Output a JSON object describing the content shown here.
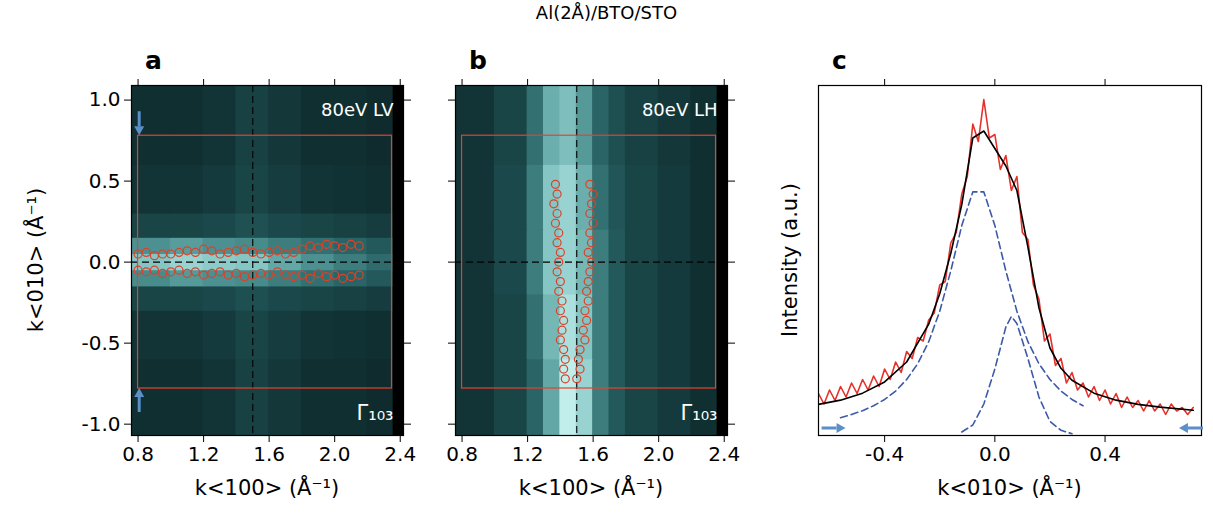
{
  "title": "Al(2Å)/BTO/STO",
  "chart_data": [
    {
      "panel": "a",
      "type": "heatmap",
      "xlabel": "k<100> (Å⁻¹)",
      "ylabel": "k<010> (Å⁻¹)",
      "annotations": [
        "80eV LV",
        "Γ₁₀₃"
      ],
      "xlim": [
        0.76,
        2.42
      ],
      "ylim": [
        -1.07,
        1.09
      ],
      "xticks": [
        0.8,
        1.2,
        1.6,
        {
          "value": 2,
          "label": "2.0"
        },
        2.4
      ],
      "yticks": [
        {
          "value": -1,
          "label": "-1.0"
        },
        -0.5,
        {
          "value": 0,
          "label": "0.0"
        },
        0.5,
        {
          "value": 1,
          "label": "1.0"
        }
      ],
      "map": {
        "x_edges": [
          0.76,
          1.0,
          1.2,
          1.4,
          1.6,
          1.8,
          2.0,
          2.2,
          2.36,
          2.42
        ],
        "y_edges": [
          -1.07,
          -0.6,
          -0.3,
          -0.15,
          -0.05,
          0.05,
          0.15,
          0.3,
          0.6,
          1.09
        ],
        "z": [
          [
            0.2,
            0.2,
            0.22,
            0.28,
            0.24,
            0.2,
            0.2,
            0.18,
            0.0
          ],
          [
            0.22,
            0.22,
            0.25,
            0.3,
            0.26,
            0.22,
            0.21,
            0.2,
            0.0
          ],
          [
            0.3,
            0.3,
            0.32,
            0.35,
            0.32,
            0.3,
            0.28,
            0.26,
            0.0
          ],
          [
            0.6,
            0.65,
            0.62,
            0.6,
            0.55,
            0.5,
            0.45,
            0.4,
            0.0
          ],
          [
            0.8,
            0.85,
            0.82,
            0.8,
            0.7,
            0.62,
            0.55,
            0.48,
            0.0
          ],
          [
            0.62,
            0.66,
            0.62,
            0.6,
            0.55,
            0.5,
            0.45,
            0.4,
            0.0
          ],
          [
            0.3,
            0.3,
            0.32,
            0.36,
            0.32,
            0.3,
            0.28,
            0.26,
            0.0
          ],
          [
            0.22,
            0.22,
            0.25,
            0.3,
            0.26,
            0.22,
            0.21,
            0.2,
            0.0
          ],
          [
            0.2,
            0.2,
            0.22,
            0.28,
            0.24,
            0.2,
            0.2,
            0.18,
            0.0
          ]
        ],
        "zlim": [
          0,
          1
        ]
      },
      "box": {
        "x": [
          0.8,
          2.35
        ],
        "y": [
          -0.78,
          0.78
        ],
        "color": "#e8402e"
      },
      "guides": {
        "x": 1.5,
        "y": 0,
        "line_style": "dashed",
        "color": "#000000"
      },
      "cut_markers": {
        "color": "#5b8fc7",
        "points": [
          {
            "x": 0.81,
            "y": 0.78,
            "direction": "down"
          },
          {
            "x": 0.81,
            "y": -0.78,
            "direction": "up"
          }
        ]
      },
      "series": [
        {
          "type": "scatter",
          "marker": "circle",
          "color": "#d9432b",
          "x": [
            0.8,
            0.85,
            0.9,
            0.95,
            1.0,
            1.05,
            1.1,
            1.15,
            1.2,
            1.25,
            1.3,
            1.35,
            1.4,
            1.45,
            1.5,
            1.55,
            1.6,
            1.65,
            1.7,
            1.75,
            1.8,
            1.85,
            1.9,
            1.95,
            2.0,
            2.05,
            2.1,
            2.15
          ],
          "values": [
            0.05,
            0.06,
            0.04,
            0.05,
            0.05,
            0.06,
            0.07,
            0.06,
            0.08,
            0.07,
            0.05,
            0.06,
            0.07,
            0.08,
            0.06,
            0.05,
            0.06,
            0.07,
            0.05,
            0.06,
            0.08,
            0.1,
            0.09,
            0.11,
            0.1,
            0.09,
            0.11,
            0.1
          ]
        },
        {
          "type": "scatter",
          "marker": "circle",
          "color": "#d9432b",
          "x": [
            0.8,
            0.85,
            0.9,
            0.95,
            1.0,
            1.05,
            1.1,
            1.15,
            1.2,
            1.25,
            1.3,
            1.35,
            1.4,
            1.45,
            1.5,
            1.55,
            1.6,
            1.65,
            1.7,
            1.75,
            1.8,
            1.85,
            1.9,
            1.95,
            2.0,
            2.05,
            2.1,
            2.15
          ],
          "values": [
            -0.05,
            -0.06,
            -0.05,
            -0.07,
            -0.06,
            -0.05,
            -0.07,
            -0.06,
            -0.08,
            -0.07,
            -0.06,
            -0.08,
            -0.07,
            -0.09,
            -0.08,
            -0.07,
            -0.08,
            -0.06,
            -0.08,
            -0.09,
            -0.08,
            -0.1,
            -0.07,
            -0.09,
            -0.08,
            -0.1,
            -0.09,
            -0.08
          ]
        }
      ]
    },
    {
      "panel": "b",
      "type": "heatmap",
      "xlabel": "k<100> (Å⁻¹)",
      "annotations": [
        "80eV LH",
        "Γ₁₀₃"
      ],
      "tick_labels": "x",
      "xlim": [
        0.76,
        2.42
      ],
      "ylim": [
        -1.07,
        1.09
      ],
      "xticks": [
        0.8,
        1.2,
        1.6,
        {
          "value": 2,
          "label": "2.0"
        },
        2.4
      ],
      "yticks": [
        -1,
        -0.5,
        0,
        0.5,
        1
      ],
      "map": {
        "x_edges": [
          0.76,
          1.0,
          1.2,
          1.3,
          1.4,
          1.5,
          1.6,
          1.7,
          1.8,
          2.0,
          2.2,
          2.36,
          2.42
        ],
        "y_edges": [
          -1.07,
          -0.6,
          -0.2,
          0.2,
          0.6,
          1.09
        ],
        "z": [
          [
            0.22,
            0.3,
            0.45,
            0.7,
            0.95,
            0.85,
            0.55,
            0.4,
            0.3,
            0.25,
            0.2,
            0.0
          ],
          [
            0.22,
            0.3,
            0.5,
            0.75,
            0.9,
            0.8,
            0.55,
            0.4,
            0.3,
            0.25,
            0.2,
            0.0
          ],
          [
            0.22,
            0.32,
            0.55,
            0.8,
            0.85,
            0.75,
            0.55,
            0.4,
            0.3,
            0.25,
            0.2,
            0.0
          ],
          [
            0.22,
            0.32,
            0.55,
            0.8,
            0.85,
            0.72,
            0.5,
            0.38,
            0.3,
            0.25,
            0.2,
            0.0
          ],
          [
            0.22,
            0.3,
            0.5,
            0.72,
            0.78,
            0.65,
            0.45,
            0.35,
            0.28,
            0.24,
            0.2,
            0.0
          ]
        ],
        "zlim": [
          0,
          1
        ]
      },
      "box": {
        "x": [
          0.8,
          2.35
        ],
        "y": [
          -0.78,
          0.78
        ],
        "color": "#e8402e"
      },
      "guides": {
        "x": 1.5,
        "y": 0,
        "line_style": "dashed",
        "color": "#000000"
      },
      "series": [
        {
          "type": "scatter",
          "marker": "circle",
          "color": "#d9432b",
          "x": [
            1.37,
            1.38,
            1.36,
            1.38,
            1.37,
            1.39,
            1.38,
            1.4,
            1.39,
            1.38,
            1.4,
            1.39,
            1.41,
            1.4,
            1.42,
            1.41,
            1.4,
            1.42,
            1.43,
            1.42,
            1.43
          ],
          "values": [
            0.48,
            0.42,
            0.36,
            0.3,
            0.24,
            0.18,
            0.12,
            0.06,
            0.0,
            -0.06,
            -0.12,
            -0.18,
            -0.24,
            -0.3,
            -0.36,
            -0.42,
            -0.48,
            -0.54,
            -0.6,
            -0.66,
            -0.72
          ]
        },
        {
          "type": "scatter",
          "marker": "circle",
          "color": "#d9432b",
          "x": [
            1.58,
            1.6,
            1.59,
            1.58,
            1.6,
            1.58,
            1.59,
            1.57,
            1.59,
            1.58,
            1.57,
            1.56,
            1.57,
            1.55,
            1.56,
            1.54,
            1.55,
            1.52,
            1.51,
            1.52,
            1.5
          ],
          "values": [
            0.48,
            0.42,
            0.36,
            0.3,
            0.24,
            0.18,
            0.12,
            0.06,
            0.0,
            -0.06,
            -0.12,
            -0.18,
            -0.24,
            -0.3,
            -0.36,
            -0.42,
            -0.48,
            -0.54,
            -0.6,
            -0.66,
            -0.72
          ]
        }
      ]
    },
    {
      "panel": "c",
      "type": "line",
      "xlabel": "k<010> (Å⁻¹)",
      "ylabel": "Intensity (a.u.)",
      "tick_labels": "x",
      "xlim": [
        -0.64,
        0.75
      ],
      "ylim": [
        0,
        1
      ],
      "xticks": [
        -0.4,
        {
          "value": 0,
          "label": "0.0"
        },
        0.4
      ],
      "yticks": [],
      "cut_markers": {
        "color": "#5b8fc7",
        "points": [
          {
            "x": -0.54,
            "y": 0.02,
            "direction": "right"
          },
          {
            "x": 0.67,
            "y": 0.02,
            "direction": "left"
          }
        ]
      },
      "series": [
        {
          "type": "line",
          "color": "#e8302a",
          "line_style": "solid",
          "x": [
            -0.64,
            -0.62,
            -0.6,
            -0.58,
            -0.56,
            -0.54,
            -0.52,
            -0.5,
            -0.48,
            -0.46,
            -0.44,
            -0.42,
            -0.4,
            -0.38,
            -0.36,
            -0.34,
            -0.32,
            -0.3,
            -0.28,
            -0.26,
            -0.24,
            -0.22,
            -0.2,
            -0.18,
            -0.16,
            -0.14,
            -0.12,
            -0.1,
            -0.08,
            -0.06,
            -0.04,
            -0.02,
            0,
            0.02,
            0.04,
            0.06,
            0.08,
            0.1,
            0.12,
            0.14,
            0.16,
            0.18,
            0.2,
            0.22,
            0.24,
            0.26,
            0.28,
            0.3,
            0.32,
            0.34,
            0.36,
            0.38,
            0.4,
            0.42,
            0.44,
            0.46,
            0.48,
            0.5,
            0.52,
            0.54,
            0.56,
            0.58,
            0.6,
            0.62,
            0.64,
            0.66,
            0.68,
            0.7,
            0.72
          ],
          "values": [
            0.12,
            0.09,
            0.13,
            0.1,
            0.14,
            0.11,
            0.15,
            0.12,
            0.16,
            0.13,
            0.17,
            0.14,
            0.19,
            0.16,
            0.21,
            0.18,
            0.24,
            0.22,
            0.28,
            0.27,
            0.33,
            0.35,
            0.43,
            0.44,
            0.55,
            0.58,
            0.69,
            0.74,
            0.89,
            0.84,
            0.96,
            0.85,
            0.86,
            0.76,
            0.8,
            0.7,
            0.74,
            0.58,
            0.56,
            0.43,
            0.39,
            0.27,
            0.29,
            0.2,
            0.22,
            0.15,
            0.18,
            0.13,
            0.15,
            0.11,
            0.14,
            0.1,
            0.13,
            0.09,
            0.12,
            0.08,
            0.11,
            0.08,
            0.1,
            0.07,
            0.1,
            0.07,
            0.09,
            0.06,
            0.09,
            0.07,
            0.08,
            0.06,
            0.08
          ]
        },
        {
          "type": "line",
          "color": "#000000",
          "line_style": "solid",
          "x": [
            -0.64,
            -0.56,
            -0.48,
            -0.4,
            -0.32,
            -0.24,
            -0.2,
            -0.16,
            -0.12,
            -0.08,
            -0.04,
            0,
            0.04,
            0.08,
            0.12,
            0.16,
            0.2,
            0.24,
            0.28,
            0.36,
            0.44,
            0.52,
            0.6,
            0.72
          ],
          "values": [
            0.089,
            0.101,
            0.121,
            0.153,
            0.21,
            0.318,
            0.405,
            0.52,
            0.66,
            0.85,
            0.87,
            0.82,
            0.77,
            0.7,
            0.538,
            0.365,
            0.25,
            0.192,
            0.158,
            0.121,
            0.101,
            0.089,
            0.081,
            0.072
          ]
        },
        {
          "type": "line",
          "color": "#3d5aa8",
          "line_style": "dashed",
          "x": [
            -0.56,
            -0.52,
            -0.48,
            -0.44,
            -0.4,
            -0.36,
            -0.32,
            -0.28,
            -0.24,
            -0.2,
            -0.16,
            -0.12,
            -0.08,
            -0.04,
            0,
            0.04,
            0.08,
            0.12,
            0.16,
            0.2,
            0.24,
            0.28,
            0.32
          ],
          "values": [
            0.051,
            0.06,
            0.071,
            0.085,
            0.103,
            0.127,
            0.16,
            0.205,
            0.268,
            0.355,
            0.47,
            0.6,
            0.696,
            0.696,
            0.6,
            0.47,
            0.355,
            0.268,
            0.205,
            0.16,
            0.127,
            0.103,
            0.085
          ]
        },
        {
          "type": "line",
          "color": "#3d5aa8",
          "line_style": "dashed",
          "x": [
            -0.12,
            -0.08,
            -0.04,
            0,
            0.02,
            0.04,
            0.06,
            0.08,
            0.12,
            0.16,
            0.2,
            0.24,
            0.28
          ],
          "values": [
            0.01,
            0.03,
            0.09,
            0.19,
            0.25,
            0.31,
            0.34,
            0.32,
            0.22,
            0.11,
            0.04,
            0.015,
            0.005
          ]
        }
      ]
    }
  ]
}
